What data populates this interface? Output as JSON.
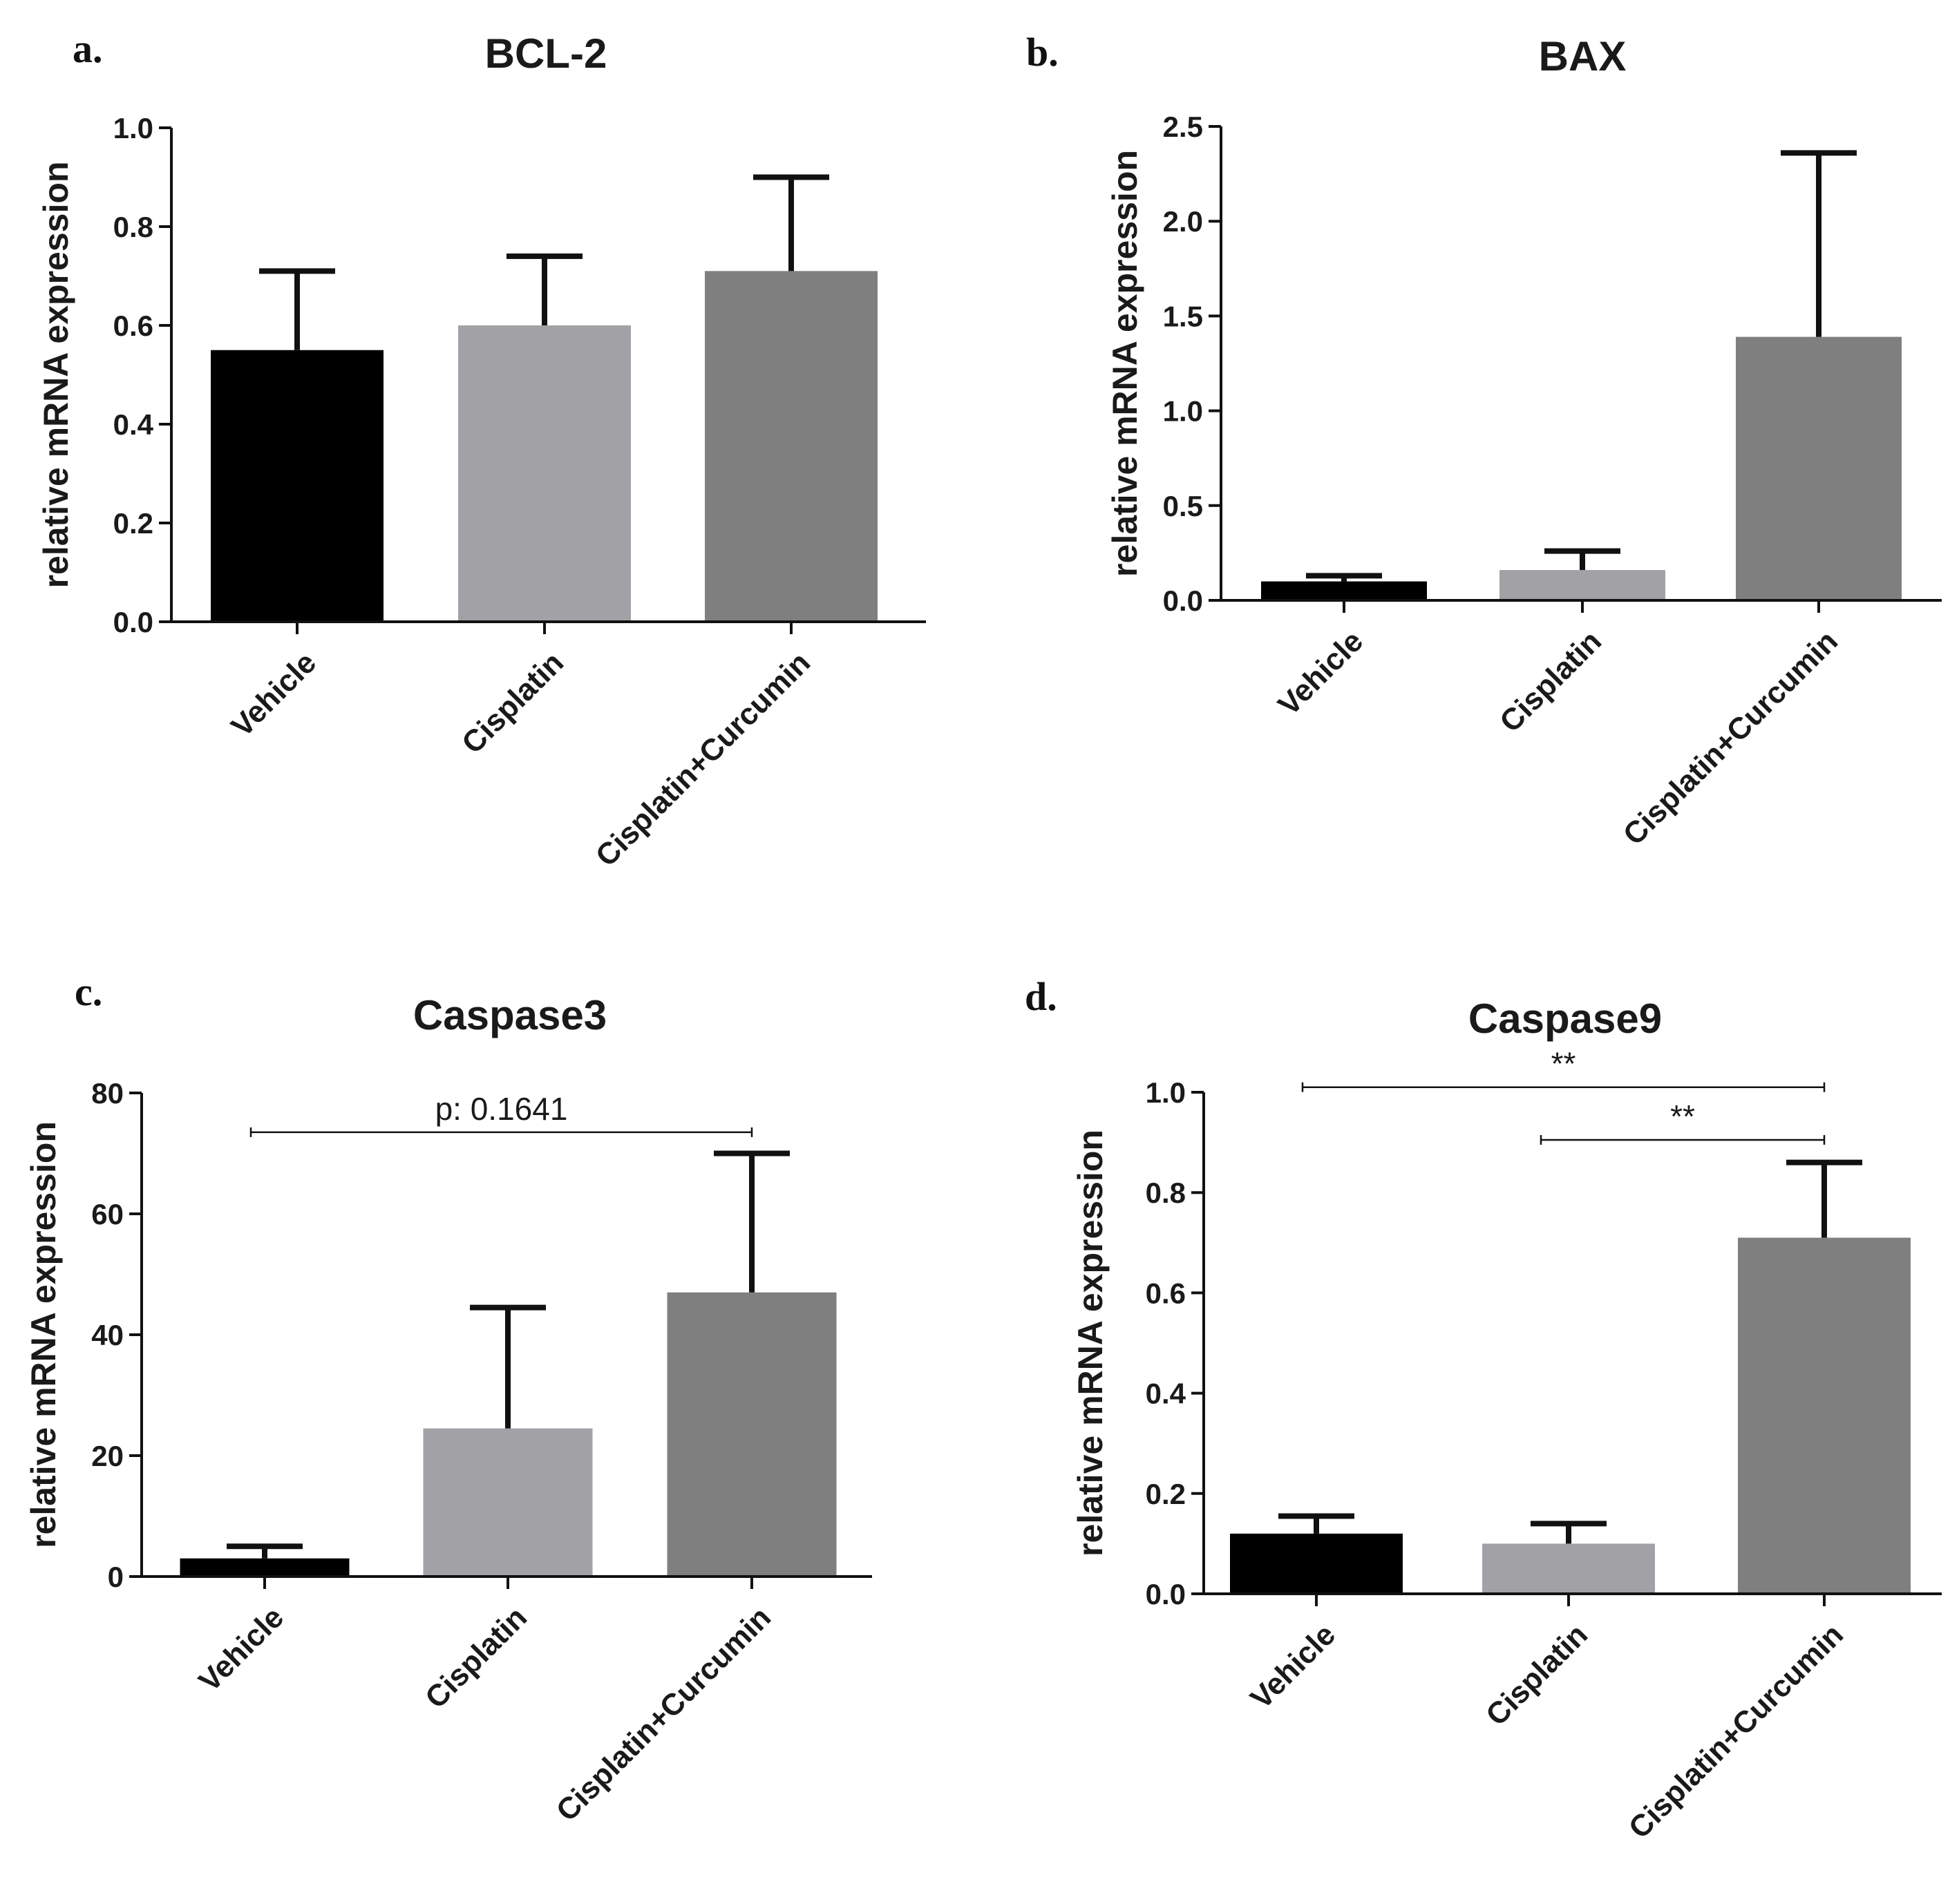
{
  "colors": {
    "Vehicle": "#000000",
    "Cisplatin": "#a2a2a6",
    "Cisplatin+Curcumin": "#7f7f7f"
  },
  "chart_data": [
    {
      "type": "bar",
      "panel": "a.",
      "title": "BCL-2",
      "ylabel": "relative mRNA expression",
      "xlabel": "",
      "categories": [
        "Vehicle",
        "Cisplatin",
        "Cisplatin+Curcumin"
      ],
      "values": [
        0.55,
        0.6,
        0.71
      ],
      "errors": [
        0.16,
        0.14,
        0.19
      ],
      "ylim": [
        0,
        1.0
      ],
      "yticks": [
        "0.0",
        "0.2",
        "0.4",
        "0.6",
        "0.8",
        "1.0"
      ],
      "annotations": []
    },
    {
      "type": "bar",
      "panel": "b.",
      "title": "BAX",
      "ylabel": "relative mRNA expression",
      "xlabel": "",
      "categories": [
        "Vehicle",
        "Cisplatin",
        "Cisplatin+Curcumin"
      ],
      "values": [
        0.1,
        0.16,
        1.39
      ],
      "errors": [
        0.03,
        0.1,
        0.97
      ],
      "ylim": [
        0,
        2.5
      ],
      "yticks": [
        "0.0",
        "0.5",
        "1.0",
        "1.5",
        "2.0",
        "2.5"
      ],
      "annotations": []
    },
    {
      "type": "bar",
      "panel": "c.",
      "title": "Caspase3",
      "ylabel": "relative mRNA expression",
      "xlabel": "",
      "categories": [
        "Vehicle",
        "Cisplatin",
        "Cisplatin+Curcumin"
      ],
      "values": [
        3,
        24.5,
        47
      ],
      "errors": [
        2,
        20,
        23
      ],
      "ylim": [
        0,
        80
      ],
      "yticks": [
        "0",
        "20",
        "40",
        "60",
        "80"
      ],
      "annotations": [
        {
          "from": 0,
          "to": 2,
          "y": 73.5,
          "text": "p: 0.1641"
        }
      ]
    },
    {
      "type": "bar",
      "panel": "d.",
      "title": "Caspase9",
      "ylabel": "relative mRNA expression",
      "xlabel": "",
      "categories": [
        "Vehicle",
        "Cisplatin",
        "Cisplatin+Curcumin"
      ],
      "values": [
        0.12,
        0.1,
        0.71
      ],
      "errors": [
        0.035,
        0.04,
        0.15
      ],
      "ylim": [
        0,
        1.0
      ],
      "yticks": [
        "0.0",
        "0.2",
        "0.4",
        "0.6",
        "0.8",
        "1.0"
      ],
      "annotations": [
        {
          "from": 0,
          "to": 2,
          "y": 1.01,
          "text": "**"
        },
        {
          "from": 1,
          "to": 2,
          "y": 0.905,
          "text": "**"
        }
      ]
    }
  ]
}
